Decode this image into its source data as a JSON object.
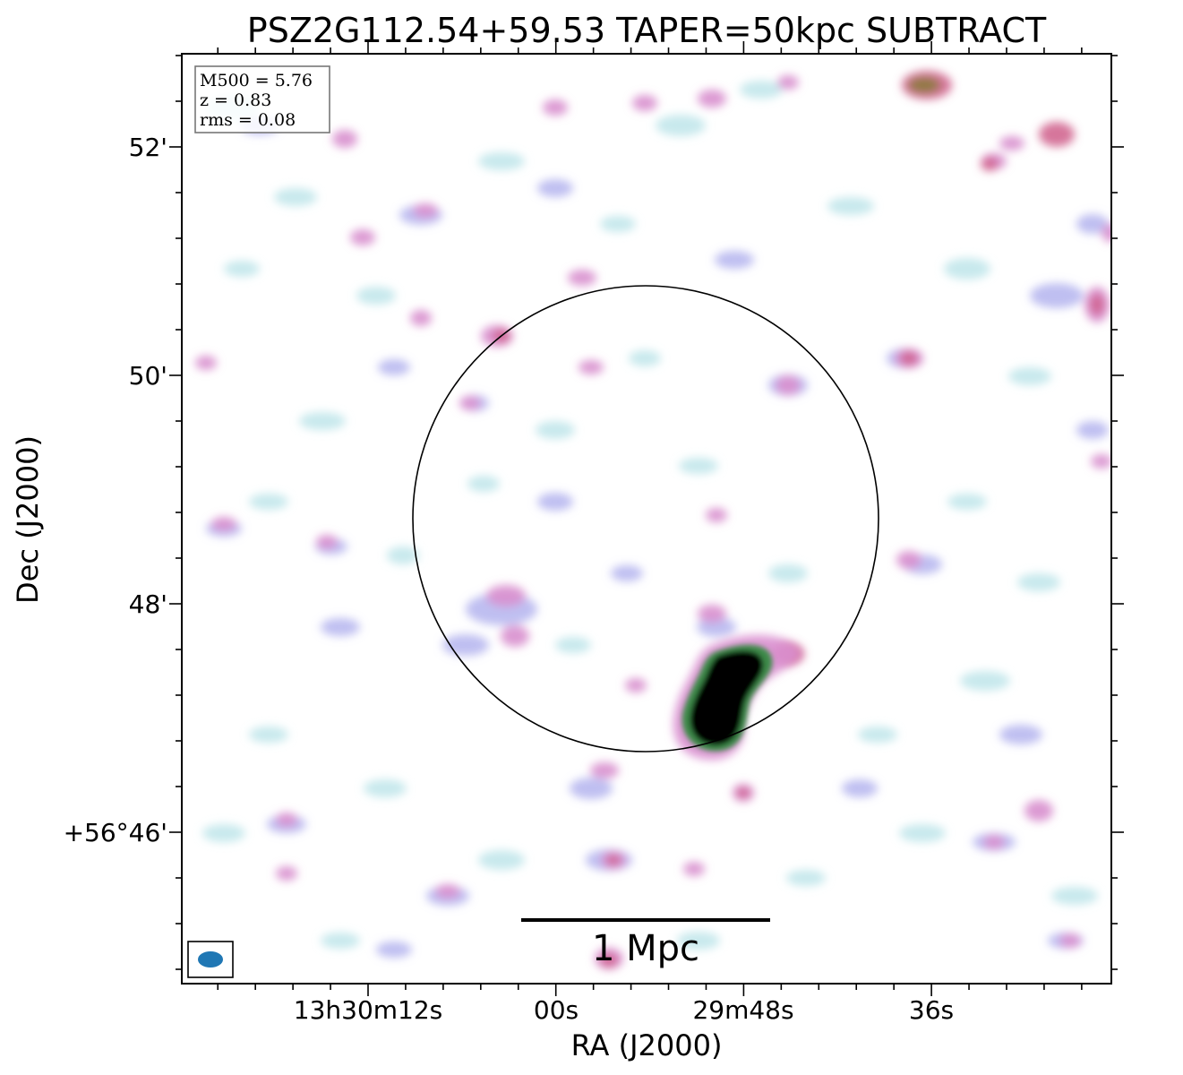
{
  "title": "PSZ2G112.54+59.53 TAPER=50kpc SUBTRACT",
  "info_box": {
    "lines": [
      "M500 = 5.76",
      "z = 0.83",
      "rms = 0.08"
    ]
  },
  "axes": {
    "xlabel": "RA (J2000)",
    "ylabel": "Dec (J2000)",
    "x_ticks": [
      "13h30m12s",
      "00s",
      "29m48s",
      "36s"
    ],
    "y_ticks": [
      "52'",
      "50'",
      "48'",
      "+56°46'"
    ]
  },
  "scale_bar": {
    "label": "1 Mpc"
  },
  "colors": {
    "frame": "#000000",
    "beam": "#1f77b4",
    "emission_light": "#bfe6ea",
    "emission_blue": "#b9b8f0",
    "emission_magenta": "#d98fcf",
    "emission_red": "#cf5f8a",
    "emission_core": "#000000",
    "emission_edge": "#3e8a4a"
  }
}
